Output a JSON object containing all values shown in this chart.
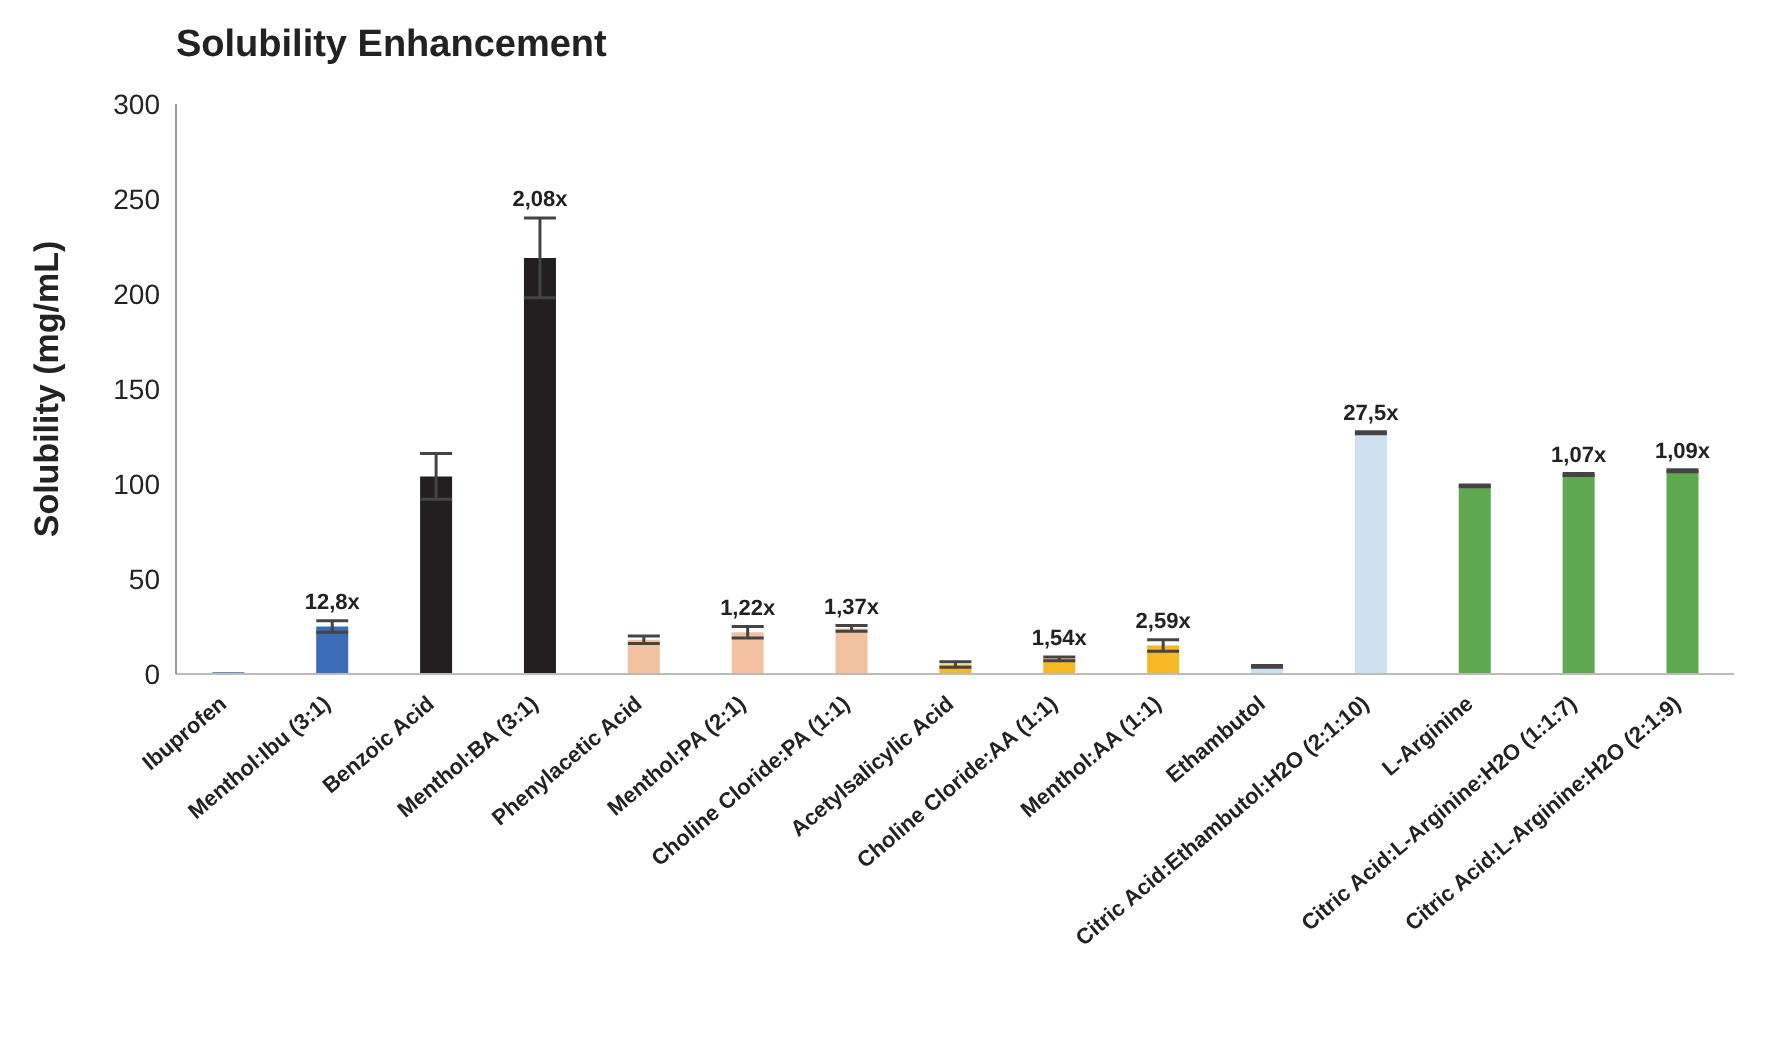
{
  "chart_data": {
    "type": "bar",
    "title": "Solubility Enhancement",
    "ylabel": "Solubility (mg/mL)",
    "categories": [
      "Ibuprofen",
      "Menthol:Ibu (3:1)",
      "Benzoic Acid",
      "Menthol:BA (3:1)",
      "Phenylacetic Acid",
      "Menthol:PA (2:1)",
      "Choline Cloride:PA (1:1)",
      "Acetylsalicylic Acid",
      "Choline Cloride:AA (1:1)",
      "Menthol:AA (1:1)",
      "Ethambutol",
      "Citric Acid:Ethambutol:H2O (2:1:10)",
      "L-Arginine",
      "Citric Acid:L-Arginine:H2O (1:1:7)",
      "Citric Acid:L-Arginine:H2O (2:1:9)"
    ],
    "values": [
      1,
      25,
      104,
      219,
      18,
      22,
      24,
      5,
      8,
      15,
      4,
      127,
      99,
      105,
      107
    ],
    "errors": [
      null,
      3,
      12,
      21,
      2,
      3,
      1.5,
      1.5,
      1,
      3,
      0.5,
      0.5,
      0.5,
      0.5,
      0.5
    ],
    "colors": [
      "#6a8fc8",
      "#3a6db5",
      "#231f20",
      "#231f20",
      "#f2c1a0",
      "#f2c1a0",
      "#f2c1a0",
      "#f6b824",
      "#f6b824",
      "#f6b824",
      "#cde0ee",
      "#cde0ee",
      "#60a850",
      "#60a850",
      "#60a850"
    ],
    "annotations": [
      {
        "text": "12,8x",
        "x": "Menthol:Ibu (3:1)",
        "y": 25
      },
      {
        "text": "2,08x",
        "x": "Menthol:BA (3:1)",
        "y": 219
      },
      {
        "text": "1,22x",
        "x": "Menthol:PA (2:1)",
        "y": 22
      },
      {
        "text": "1,37x",
        "x": "Choline Cloride:PA (1:1)",
        "y": 24
      },
      {
        "text": "1,54x",
        "x": "Choline Cloride:AA (1:1)",
        "y": 8
      },
      {
        "text": "2,59x",
        "x": "Menthol:AA (1:1)",
        "y": 15
      },
      {
        "text": "27,5x",
        "x": "Citric Acid:Ethambutol:H2O (2:1:10)",
        "y": 127
      },
      {
        "text": "1,07x",
        "x": "Citric Acid:L-Arginine:H2O (1:1:7)",
        "y": 105
      },
      {
        "text": "1,09x",
        "x": "Citric Acid:L-Arginine:H2O (2:1:9)",
        "y": 107
      }
    ],
    "ylim": [
      0,
      300
    ],
    "yticks": [
      0,
      50,
      100,
      150,
      200,
      250,
      300
    ],
    "grid": false,
    "legend": false
  }
}
